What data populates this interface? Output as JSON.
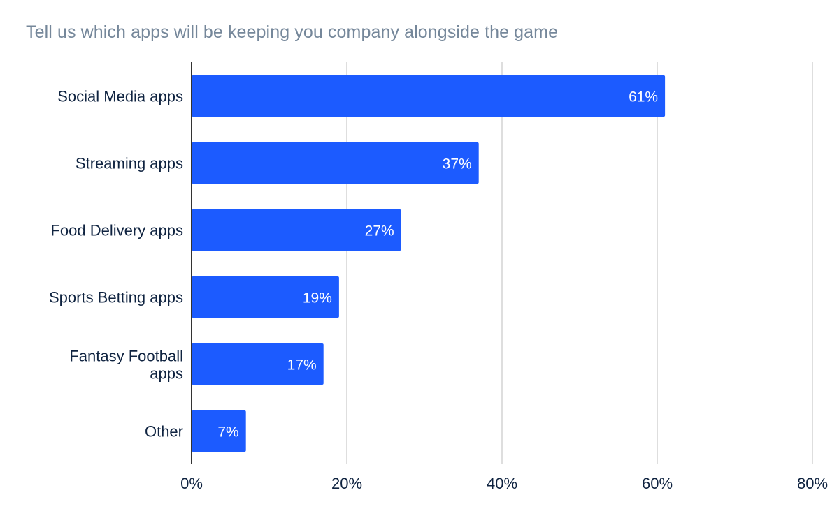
{
  "chart_data": {
    "type": "bar",
    "orientation": "horizontal",
    "title": "Tell us which apps will be keeping you company alongside the game",
    "categories": [
      "Social Media apps",
      "Streaming apps",
      "Food Delivery apps",
      "Sports Betting apps",
      "Fantasy Football apps",
      "Other"
    ],
    "values": [
      61,
      37,
      27,
      19,
      17,
      7
    ],
    "data_labels": [
      "61%",
      "37%",
      "27%",
      "19%",
      "17%",
      "7%"
    ],
    "xlim": [
      0,
      80
    ],
    "x_ticks": [
      0,
      20,
      40,
      60,
      80
    ],
    "x_tick_labels": [
      "0%",
      "20%",
      "40%",
      "60%",
      "80%"
    ],
    "xlabel": "",
    "ylabel": "",
    "grid": "vertical",
    "legend": "none",
    "colors": {
      "bar": "#1c5bff",
      "title": "#75879a",
      "text": "#0f2340",
      "grid": "#cccccc",
      "axis": "#333333"
    }
  }
}
